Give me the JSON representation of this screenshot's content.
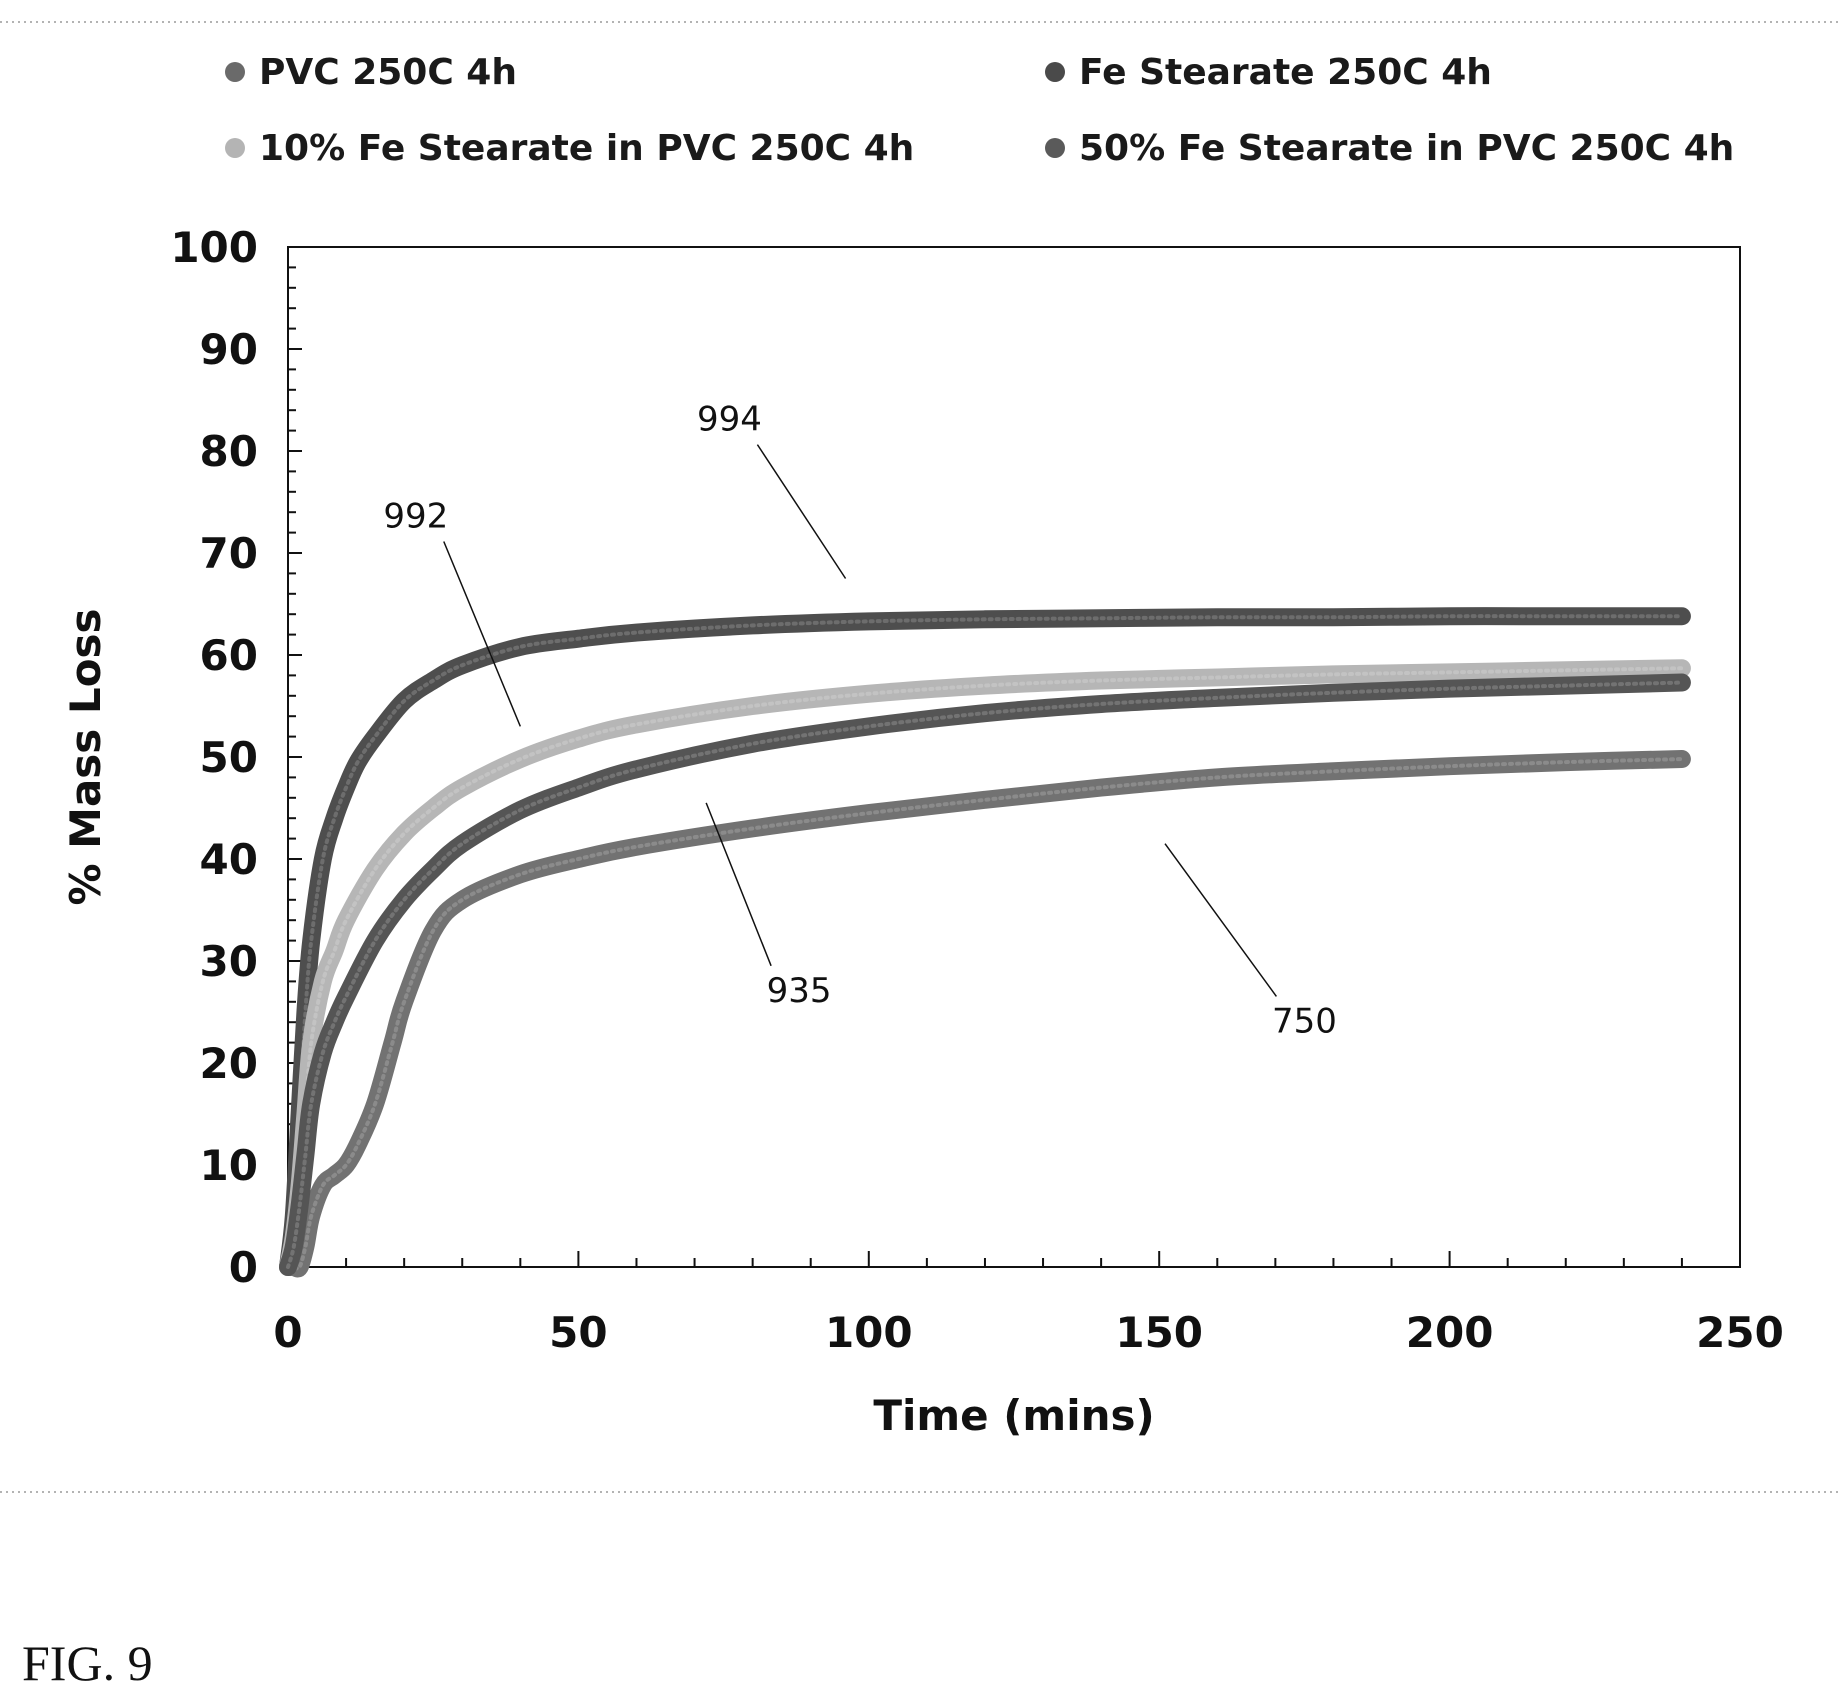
{
  "figure_caption": "FIG. 9",
  "chart_data": {
    "type": "line",
    "xlabel": "Time (mins)",
    "ylabel": "% Mass Loss",
    "xlim": [
      0,
      250
    ],
    "ylim": [
      0,
      100
    ],
    "x_major_ticks": [
      0,
      50,
      100,
      150,
      200,
      250
    ],
    "y_major_ticks": [
      0,
      10,
      20,
      30,
      40,
      50,
      60,
      70,
      80,
      90,
      100
    ],
    "grid": false,
    "legend_placement": "top",
    "legend": [
      {
        "label": "PVC 250C 4h",
        "color": "#6a6a6a"
      },
      {
        "label": "Fe Stearate 250C 4h",
        "color": "#4a4a4a"
      },
      {
        "label": "10% Fe Stearate in PVC 250C 4h",
        "color": "#b4b4b4"
      },
      {
        "label": "50% Fe Stearate in PVC 250C 4h",
        "color": "#5a5a5a"
      }
    ],
    "series": [
      {
        "name": "PVC 250C 4h",
        "color": "#727272",
        "ref": "750",
        "x": [
          0,
          1,
          2,
          3,
          4,
          6,
          8,
          10,
          12,
          15,
          18,
          20,
          25,
          30,
          40,
          50,
          60,
          80,
          100,
          120,
          140,
          160,
          180,
          200,
          220,
          240
        ],
        "y": [
          0,
          0,
          0,
          2,
          5,
          8,
          9,
          10,
          12,
          16,
          22,
          26,
          33,
          36,
          38.5,
          40,
          41.2,
          43,
          44.5,
          45.8,
          47,
          48,
          48.6,
          49.1,
          49.5,
          49.8
        ]
      },
      {
        "name": "Fe Stearate 250C 4h",
        "color": "#4e4e4e",
        "ref": "994",
        "x": [
          0,
          1,
          2,
          3,
          4,
          6,
          8,
          10,
          12,
          15,
          20,
          25,
          30,
          40,
          50,
          60,
          80,
          100,
          120,
          140,
          160,
          180,
          200,
          220,
          240
        ],
        "y": [
          0,
          5,
          15,
          25,
          32,
          40,
          44,
          47,
          49.5,
          52,
          55.5,
          57.5,
          59,
          60.8,
          61.6,
          62.2,
          62.9,
          63.3,
          63.5,
          63.6,
          63.7,
          63.7,
          63.8,
          63.8,
          63.8
        ]
      },
      {
        "name": "10% Fe Stearate in PVC 250C 4h",
        "color": "#b6b6b6",
        "ref": "992",
        "x": [
          0,
          1,
          2,
          3,
          4,
          6,
          8,
          10,
          15,
          20,
          25,
          30,
          40,
          50,
          60,
          80,
          100,
          120,
          140,
          160,
          180,
          200,
          220,
          240
        ],
        "y": [
          0,
          3,
          8,
          15,
          22,
          28,
          31,
          34,
          39,
          42.5,
          45,
          47,
          49.8,
          51.8,
          53.2,
          55,
          56.2,
          57,
          57.5,
          57.8,
          58.1,
          58.3,
          58.5,
          58.7
        ]
      },
      {
        "name": "50% Fe Stearate in PVC 250C 4h",
        "color": "#555555",
        "ref": "935",
        "x": [
          0,
          1,
          2,
          3,
          4,
          6,
          8,
          10,
          15,
          20,
          25,
          30,
          40,
          50,
          60,
          80,
          100,
          120,
          140,
          160,
          180,
          200,
          220,
          240
        ],
        "y": [
          0,
          2,
          6,
          11,
          16,
          21,
          24,
          26.5,
          32,
          36,
          39,
          41.5,
          44.8,
          47,
          48.8,
          51.3,
          53,
          54.3,
          55.2,
          55.8,
          56.3,
          56.7,
          57,
          57.3
        ]
      }
    ],
    "annotations": [
      {
        "text": "994",
        "x": 76,
        "y": 82,
        "target_x": 96,
        "target_y": 67.5
      },
      {
        "text": "992",
        "x": 22,
        "y": 72.5,
        "target_x": 40,
        "target_y": 53
      },
      {
        "text": "935",
        "x": 88,
        "y": 26,
        "target_x": 72,
        "target_y": 45.5
      },
      {
        "text": "750",
        "x": 175,
        "y": 23,
        "target_x": 151,
        "target_y": 41.5
      }
    ]
  }
}
